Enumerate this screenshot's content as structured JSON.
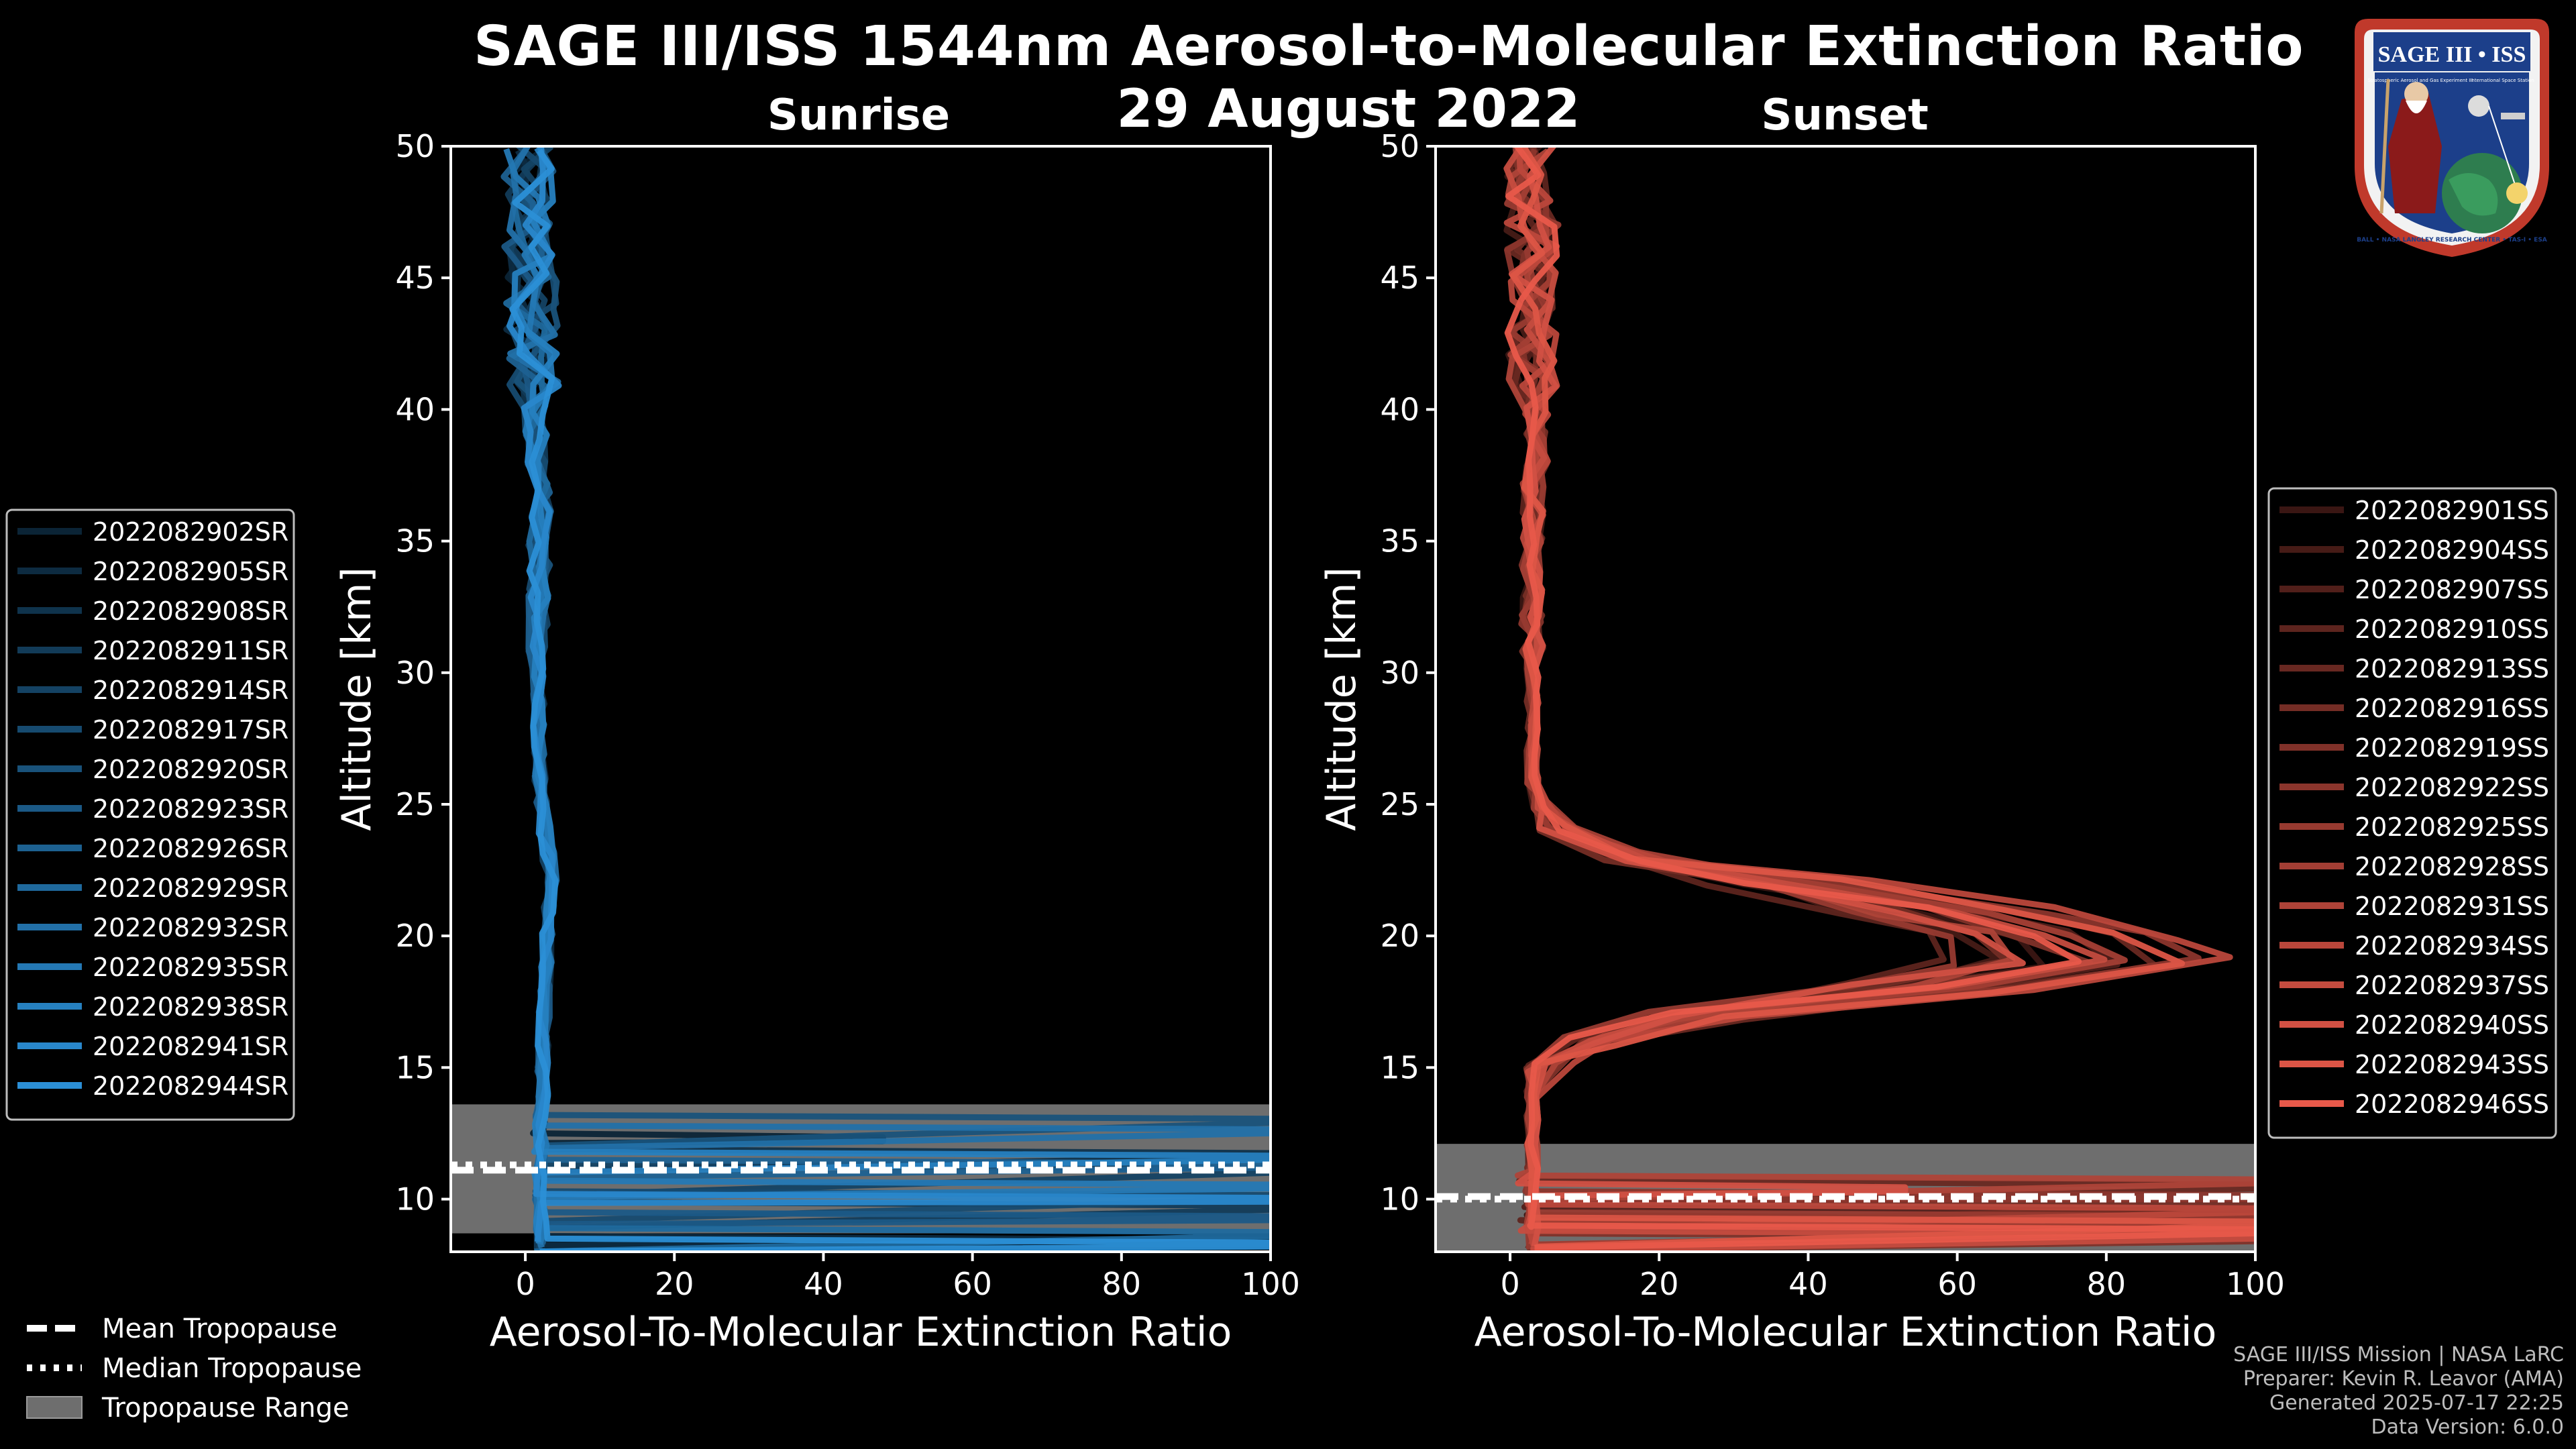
{
  "title": "SAGE III/ISS 1544nm Aerosol-to-Molecular Extinction Ratio",
  "subtitle": "29 August 2022",
  "colors": {
    "background": "#000000",
    "sunrise": "#2b8fd6",
    "sunset": "#e8594a",
    "tropopause_band": "#6e6e6e",
    "axis": "#ffffff"
  },
  "chart_data": [
    {
      "type": "line",
      "title": "Sunrise",
      "xlabel": "Aerosol-To-Molecular Extinction Ratio",
      "ylabel": "Altitude [km]",
      "xlim": [
        -10,
        100
      ],
      "ylim": [
        8,
        50
      ],
      "xticks": [
        0,
        20,
        40,
        60,
        80,
        100
      ],
      "yticks": [
        10,
        15,
        20,
        25,
        30,
        35,
        40,
        45,
        50
      ],
      "tropopause": {
        "mean_km": 11.1,
        "median_km": 11.3,
        "range_km": [
          8.7,
          13.6
        ]
      },
      "profile_shape": {
        "description": "Ratio near 2 through stratosphere, noisier above 40 km",
        "altitude_km": [
          8.2,
          9,
          10,
          11,
          12,
          13,
          14,
          15,
          16,
          17,
          18,
          19,
          20,
          21,
          22,
          23,
          24,
          25,
          26,
          27,
          28,
          29,
          30,
          31,
          32,
          33,
          34,
          35,
          36,
          37,
          38,
          39,
          40,
          41,
          42,
          43,
          44,
          45,
          46,
          47,
          48,
          49,
          50
        ],
        "ratio": [
          2.0,
          2.2,
          2.1,
          2.0,
          2.2,
          2.0,
          2.5,
          2.3,
          2.4,
          2.6,
          2.8,
          2.9,
          3.0,
          3.2,
          3.4,
          3.1,
          2.6,
          2.2,
          2.0,
          1.9,
          1.8,
          1.8,
          1.7,
          1.7,
          1.8,
          1.9,
          2.0,
          1.9,
          2.0,
          2.1,
          1.8,
          1.5,
          1.3,
          1.2,
          1.0,
          0.9,
          0.8,
          1.0,
          0.5,
          0.6,
          0.8,
          0.5,
          0.3
        ]
      },
      "series": [
        {
          "name": "2022082902SR",
          "trop_spike": {
            "alt": 12.2,
            "to": 48
          }
        },
        {
          "name": "2022082905SR",
          "trop_spike": {
            "alt": 8.3,
            "to": 100
          }
        },
        {
          "name": "2022082908SR",
          "trop_spike": {
            "alt": 11.6,
            "to": 100
          }
        },
        {
          "name": "2022082911SR",
          "trop_spike": {
            "alt": 9.6,
            "to": 100
          }
        },
        {
          "name": "2022082914SR",
          "trop_spike": {
            "alt": 11.0,
            "to": 100
          }
        },
        {
          "name": "2022082917SR",
          "trop_spike": {
            "alt": 10.0,
            "to": 100
          }
        },
        {
          "name": "2022082920SR",
          "trop_spike": {
            "alt": 12.9,
            "to": 100
          }
        },
        {
          "name": "2022082923SR",
          "trop_spike": {
            "alt": 9.2,
            "to": 100
          }
        },
        {
          "name": "2022082926SR",
          "trop_spike": {
            "alt": 11.2,
            "to": 100
          }
        },
        {
          "name": "2022082929SR",
          "trop_spike": {
            "alt": 8.6,
            "to": 100
          }
        },
        {
          "name": "2022082932SR",
          "trop_spike": {
            "alt": 12.5,
            "to": 100
          }
        },
        {
          "name": "2022082935SR",
          "trop_spike": {
            "alt": 10.4,
            "to": 100
          }
        },
        {
          "name": "2022082938SR",
          "trop_spike": {
            "alt": 11.5,
            "to": 100
          }
        },
        {
          "name": "2022082941SR",
          "trop_spike": {
            "alt": 9.9,
            "to": 100
          }
        },
        {
          "name": "2022082944SR",
          "trop_spike": {
            "alt": 8.2,
            "to": 100
          }
        }
      ]
    },
    {
      "type": "line",
      "title": "Sunset",
      "xlabel": "Aerosol-To-Molecular Extinction Ratio",
      "ylabel": "Altitude [km]",
      "xlim": [
        -10,
        100
      ],
      "ylim": [
        8,
        50
      ],
      "xticks": [
        0,
        20,
        40,
        60,
        80,
        100
      ],
      "yticks": [
        10,
        15,
        20,
        25,
        30,
        35,
        40,
        45,
        50
      ],
      "tropopause": {
        "mean_km": 10.1,
        "median_km": 10.0,
        "range_km": [
          8.0,
          12.1
        ]
      },
      "profile_shape": {
        "description": "Strong aerosol layer 16-24 km peaking near 19 km",
        "altitude_km": [
          8.2,
          9,
          10,
          11,
          12,
          13,
          14,
          15,
          16,
          17,
          18,
          19,
          20,
          21,
          22,
          23,
          24,
          25,
          26,
          27,
          28,
          29,
          30,
          31,
          32,
          33,
          34,
          35,
          36,
          37,
          38,
          39,
          40,
          41,
          42,
          43,
          44,
          45,
          46,
          47,
          48,
          49,
          50
        ],
        "ratio": [
          1.5,
          1.5,
          1.5,
          1.0,
          1.5,
          2.0,
          3.0,
          5.0,
          10.0,
          25.0,
          55.0,
          75.0,
          70.0,
          55.0,
          35.0,
          15.0,
          7.0,
          4.0,
          3.0,
          2.5,
          2.0,
          2.0,
          2.0,
          2.5,
          3.0,
          2.5,
          2.5,
          3.0,
          3.0,
          3.0,
          3.5,
          3.5,
          3.5,
          3.0,
          3.0,
          3.0,
          3.0,
          3.0,
          3.0,
          3.0,
          3.0,
          3.0,
          3.0
        ]
      },
      "series": [
        {
          "name": "2022082901SS",
          "trop_spike": {
            "alt": 9.1,
            "to": 100
          },
          "peak": 72
        },
        {
          "name": "2022082904SS",
          "trop_spike": {
            "alt": 8.6,
            "to": 100
          },
          "peak": 64
        },
        {
          "name": "2022082907SS",
          "trop_spike": {
            "alt": 9.4,
            "to": 100
          },
          "peak": 80
        },
        {
          "name": "2022082910SS",
          "trop_spike": {
            "alt": 8.9,
            "to": 100
          },
          "peak": 58
        },
        {
          "name": "2022082913SS",
          "trop_spike": {
            "alt": 10.4,
            "to": 100
          },
          "peak": 88
        },
        {
          "name": "2022082916SS",
          "trop_spike": {
            "alt": 9.7,
            "to": 100
          },
          "peak": 68
        },
        {
          "name": "2022082919SS",
          "trop_spike": {
            "alt": 8.4,
            "to": 100
          },
          "peak": 76
        },
        {
          "name": "2022082922SS",
          "trop_spike": {
            "alt": 10.0,
            "to": 100
          },
          "peak": 95
        },
        {
          "name": "2022082925SS",
          "trop_spike": {
            "alt": 9.2,
            "to": 100
          },
          "peak": 62
        },
        {
          "name": "2022082928SS",
          "trop_spike": {
            "alt": 8.8,
            "to": 100
          },
          "peak": 84
        },
        {
          "name": "2022082931SS",
          "trop_spike": {
            "alt": 10.6,
            "to": 100
          },
          "peak": 70
        },
        {
          "name": "2022082934SS",
          "trop_spike": {
            "alt": 9.5,
            "to": 100
          },
          "peak": 100
        },
        {
          "name": "2022082937SS",
          "trop_spike": {
            "alt": 8.5,
            "to": 100
          },
          "peak": 78
        },
        {
          "name": "2022082940SS",
          "trop_spike": {
            "alt": 10.3,
            "to": 53
          },
          "peak": 66
        },
        {
          "name": "2022082943SS",
          "trop_spike": {
            "alt": 9.0,
            "to": 100
          },
          "peak": 90
        },
        {
          "name": "2022082946SS",
          "trop_spike": {
            "alt": 8.7,
            "to": 100
          },
          "peak": 74
        }
      ]
    }
  ],
  "tropopause_legend": [
    {
      "label": "Mean Tropopause",
      "style": "dashed"
    },
    {
      "label": "Median Tropopause",
      "style": "dotted"
    },
    {
      "label": "Tropopause Range",
      "style": "band"
    }
  ],
  "badge": {
    "title": "SAGE III • ISS",
    "ring_text": "BALL • NASA LANGLEY RESEARCH CENTER • TAS-I • ESA",
    "small_left": "Stratospheric Aerosol and Gas Experiment III",
    "small_right": "International Space Station"
  },
  "credits": [
    "SAGE III/ISS Mission | NASA LaRC",
    "Preparer: Kevin R. Leavor (AMA)",
    "Generated 2025-07-17 22:25",
    "Data Version: 6.0.0"
  ]
}
